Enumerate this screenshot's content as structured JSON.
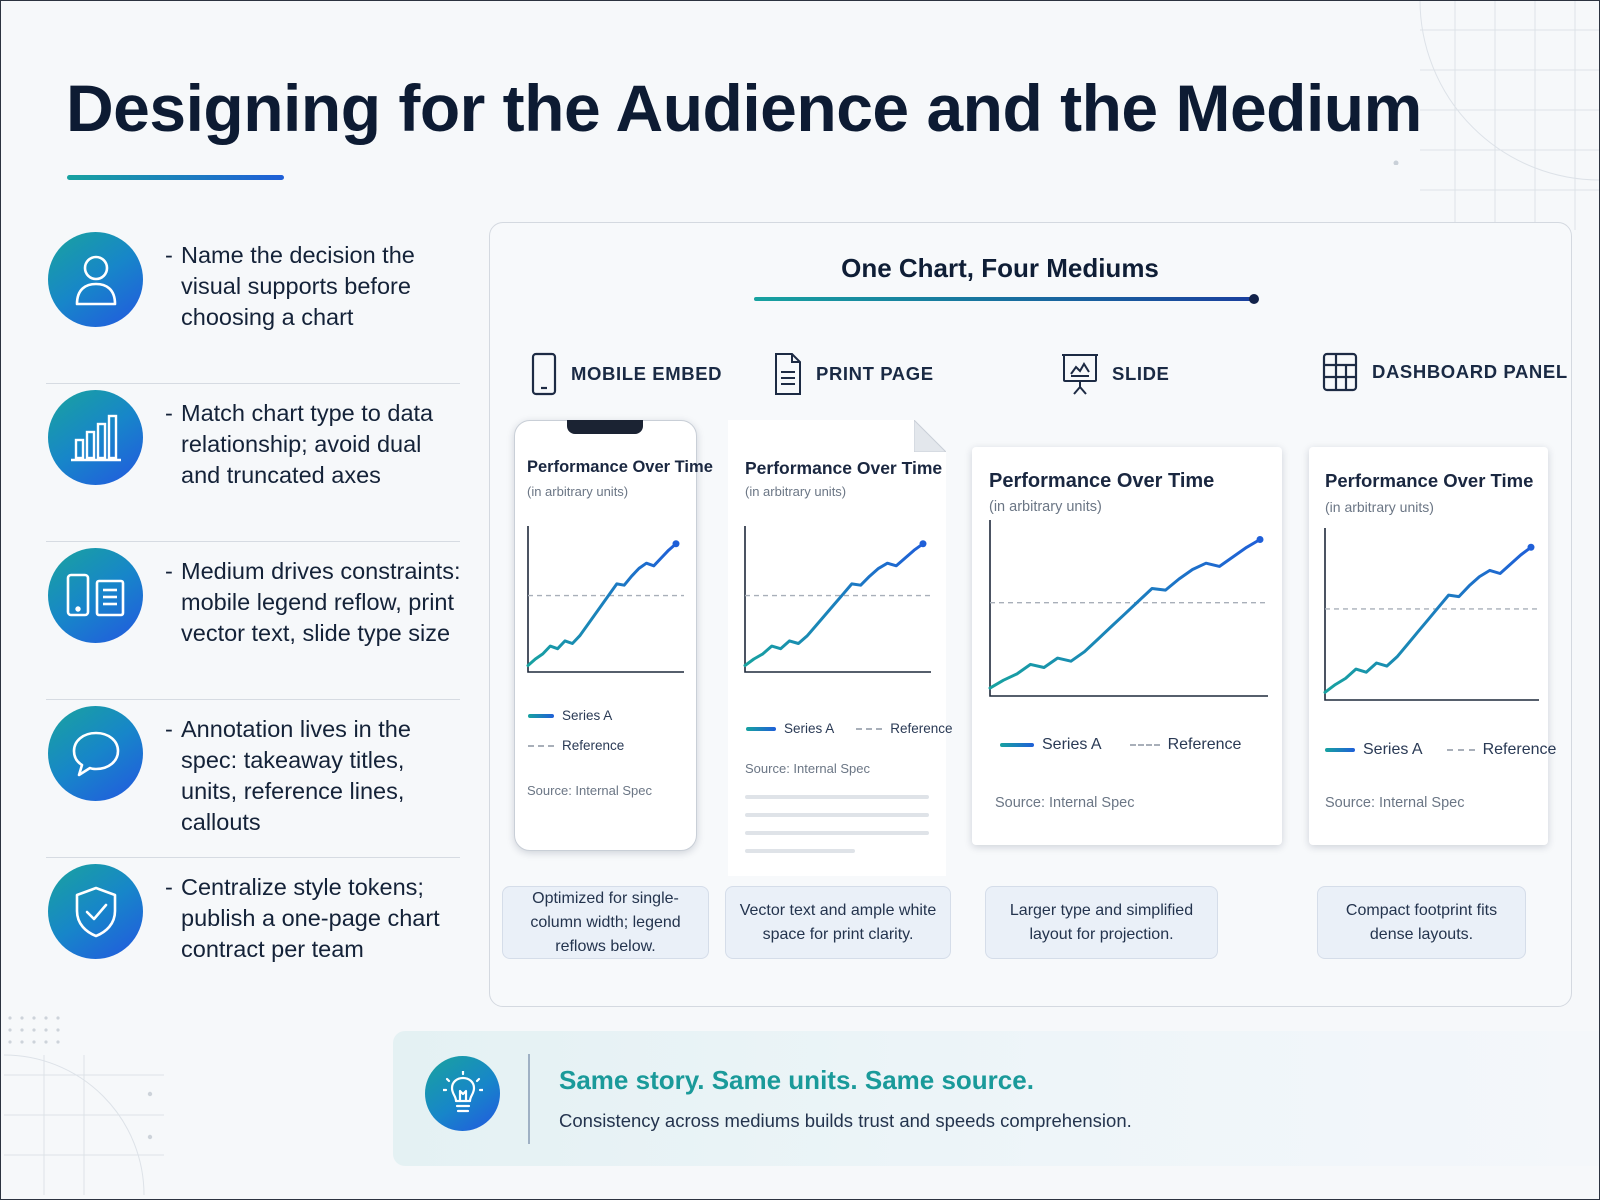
{
  "title": "Designing for the Audience and the Medium",
  "principles": [
    {
      "icon": "person-icon",
      "text": "Name the decision the visual supports before choosing a chart"
    },
    {
      "icon": "bar-chart-icon",
      "text": "Match chart type to data relationship; avoid dual and truncated axes"
    },
    {
      "icon": "devices-icon",
      "text": "Medium drives constraints: mobile legend reflow, print vector text, slide type size"
    },
    {
      "icon": "speech-bubble-icon",
      "text": "Annotation lives in the spec: takeaway titles, units, reference lines, callouts"
    },
    {
      "icon": "shield-check-icon",
      "text": "Centralize style tokens; publish a one-page chart contract per team"
    }
  ],
  "panel": {
    "title": "One Chart, Four Mediums",
    "mediums": [
      {
        "icon": "phone-icon",
        "label": "MOBILE EMBED",
        "caption": "Optimized for single-column width; legend reflows below."
      },
      {
        "icon": "document-icon",
        "label": "PRINT PAGE",
        "caption": "Vector text and ample white space for print clarity."
      },
      {
        "icon": "presentation-icon",
        "label": "SLIDE",
        "caption": "Larger type and simplified layout for projection."
      },
      {
        "icon": "dashboard-icon",
        "label": "DASHBOARD PANEL",
        "caption": "Compact footprint fits dense layouts."
      }
    ],
    "chart": {
      "title": "Performance Over Time",
      "subtitle": "(in arbitrary units)",
      "series_label": "Series A",
      "reference_label": "Reference",
      "source": "Source: Internal Spec"
    }
  },
  "chart_data": {
    "type": "line",
    "title": "Performance Over Time",
    "subtitle": "(in arbitrary units)",
    "x": [
      0,
      1,
      2,
      3,
      4,
      5,
      6,
      7,
      8,
      9,
      10,
      11,
      12,
      13,
      14,
      15,
      16,
      17,
      18,
      19,
      20
    ],
    "series": [
      {
        "name": "Series A",
        "values": [
          5,
          10,
          14,
          20,
          18,
          24,
          22,
          28,
          36,
          44,
          52,
          60,
          68,
          67,
          74,
          80,
          84,
          82,
          88,
          94,
          99
        ]
      }
    ],
    "reference": {
      "name": "Reference",
      "value": 59
    },
    "ylim": [
      0,
      105
    ],
    "grid": false,
    "legend": "bottom",
    "source": "Source: Internal Spec"
  },
  "banner": {
    "icon": "lightbulb-icon",
    "headline": "Same story. Same units. Same source.",
    "subtext": "Consistency across mediums builds trust and speeds comprehension."
  },
  "colors": {
    "title": "#0d1b33",
    "accent_teal": "#17a2a0",
    "accent_blue": "#1f5fd8",
    "banner_headline": "#1a9a9a"
  }
}
